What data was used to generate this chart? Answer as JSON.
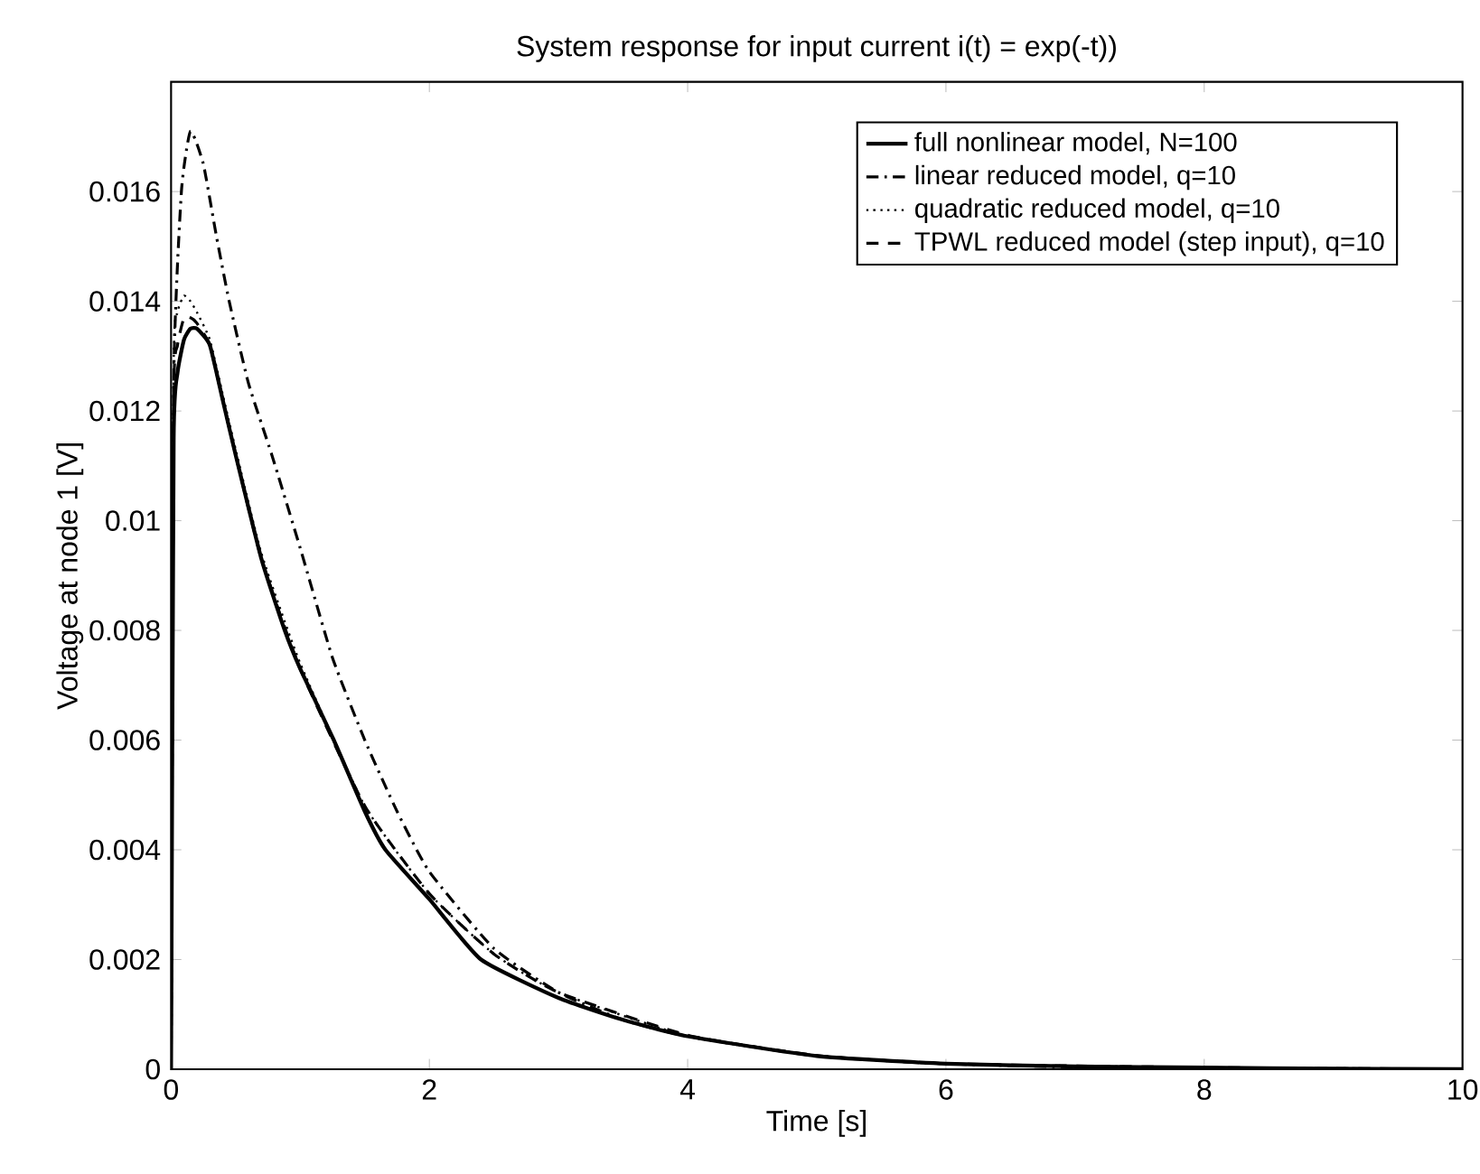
{
  "chart_data": {
    "type": "line",
    "title": "System response for input current i(t) = exp(-t))",
    "xlabel": "Time [s]",
    "ylabel": "Voltage at node 1 [V]",
    "xlim": [
      0,
      10
    ],
    "ylim": [
      0,
      0.018
    ],
    "xticks": [
      0,
      2,
      4,
      6,
      8,
      10
    ],
    "yticks": [
      0,
      0.002,
      0.004,
      0.006,
      0.008,
      0.01,
      0.012,
      0.014,
      0.016
    ],
    "legend": "top right",
    "grid": false,
    "series": [
      {
        "name": "full nonlinear model, N=100",
        "color": "#000000",
        "line_style": "solid",
        "x": [
          0,
          0.02,
          0.05,
          0.1,
          0.15,
          0.2,
          0.3,
          0.4,
          0.5,
          0.7,
          0.88,
          1,
          1.26,
          1.5,
          1.66,
          2,
          2.4,
          3,
          3.5,
          4,
          5,
          6,
          7,
          8,
          9,
          10
        ],
        "values": [
          0,
          0.0115,
          0.0127,
          0.0133,
          0.0135,
          0.0135,
          0.0132,
          0.0122,
          0.0112,
          0.0093,
          0.008,
          0.0073,
          0.006,
          0.0047,
          0.004,
          0.0031,
          0.002,
          0.0013,
          0.0009,
          0.0006,
          0.00024,
          0.0001,
          5e-05,
          3e-05,
          1e-05,
          0
        ]
      },
      {
        "name": "linear reduced model, q=10",
        "color": "#000000",
        "line_style": "dashdot",
        "x": [
          0,
          0.02,
          0.08,
          0.15,
          0.25,
          0.35,
          0.45,
          0.6,
          0.78,
          1,
          1.25,
          1.5,
          1.75,
          2,
          2.5,
          3,
          3.5,
          4,
          5,
          6,
          7,
          8,
          9,
          10
        ],
        "values": [
          0,
          0.0125,
          0.016,
          0.0171,
          0.0165,
          0.0152,
          0.014,
          0.0125,
          0.0112,
          0.0095,
          0.0075,
          0.006,
          0.0047,
          0.0036,
          0.0022,
          0.0014,
          0.0009,
          0.0006,
          0.00024,
          0.0001,
          4e-05,
          2e-05,
          1e-05,
          0
        ]
      },
      {
        "name": "quadratic reduced model, q=10",
        "color": "#000000",
        "line_style": "dotted",
        "x": [
          0,
          0.02,
          0.05,
          0.1,
          0.15,
          0.2,
          0.3,
          0.4,
          0.5,
          0.7,
          1,
          1.5,
          2,
          2.5,
          3,
          4,
          5,
          6,
          8,
          10
        ],
        "values": [
          0,
          0.0128,
          0.0138,
          0.0141,
          0.014,
          0.0138,
          0.0133,
          0.0123,
          0.0113,
          0.0094,
          0.0074,
          0.0048,
          0.0032,
          0.0021,
          0.0014,
          0.0006,
          0.00025,
          0.0001,
          3e-05,
          0
        ]
      },
      {
        "name": "TPWL reduced model (step input), q=10",
        "color": "#000000",
        "line_style": "dashed",
        "x": [
          0,
          0.02,
          0.05,
          0.1,
          0.15,
          0.2,
          0.3,
          0.4,
          0.5,
          0.7,
          1,
          1.5,
          2,
          2.5,
          3,
          4,
          5,
          6,
          8,
          10
        ],
        "values": [
          0,
          0.0122,
          0.0132,
          0.0137,
          0.0137,
          0.0136,
          0.0132,
          0.0122,
          0.0112,
          0.0093,
          0.0073,
          0.0048,
          0.0032,
          0.0021,
          0.0014,
          0.00062,
          0.00025,
          0.0001,
          3e-05,
          0
        ]
      }
    ]
  }
}
